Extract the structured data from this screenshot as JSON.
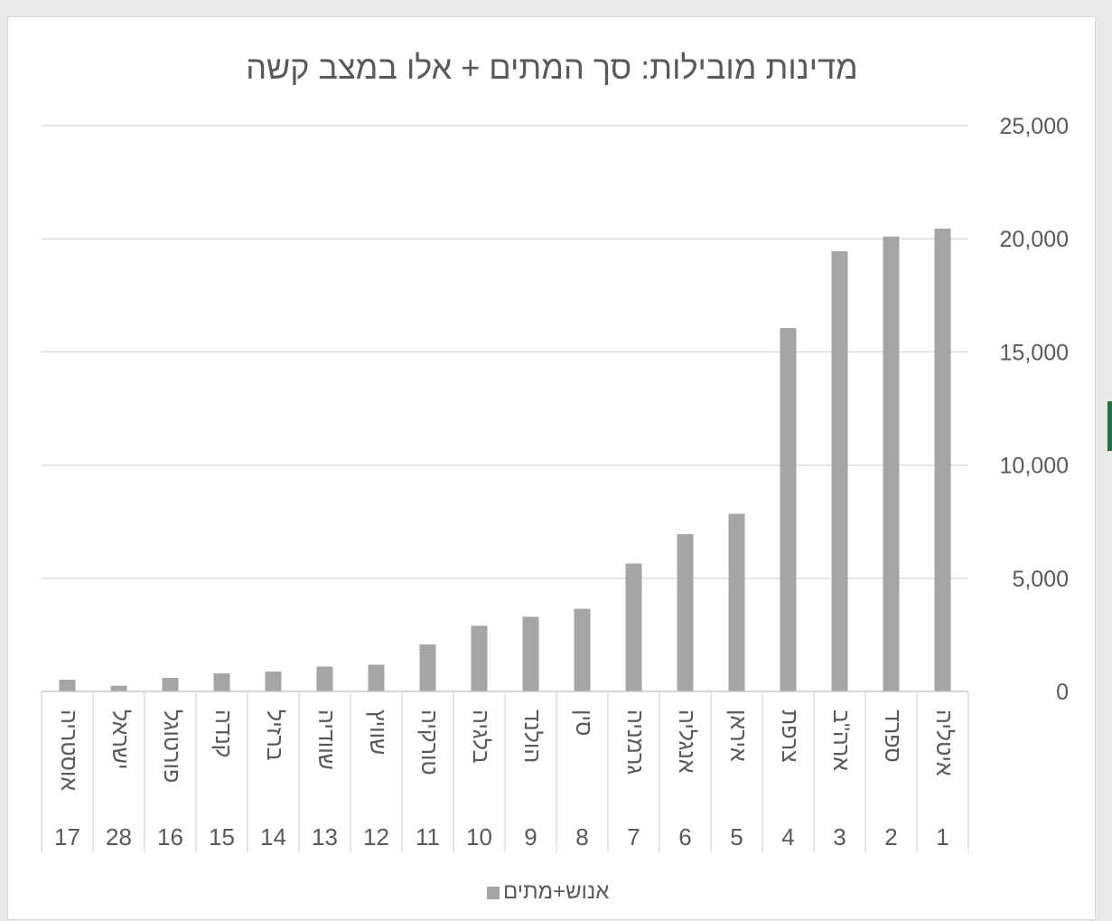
{
  "chart_data": {
    "type": "bar",
    "title": "מדינות מובילות: סך המתים + אלו במצב קשה",
    "xlabel": "",
    "ylabel": "",
    "ylim": [
      0,
      25000
    ],
    "yticks": [
      0,
      5000,
      10000,
      15000,
      20000,
      25000
    ],
    "ytick_labels": [
      "0",
      "5,000",
      "10,000",
      "15,000",
      "20,000",
      "25,000"
    ],
    "grid": true,
    "axis_side": "right",
    "category_order": "right-to-left",
    "legend_position": "bottom",
    "bar_color": "#a5a5a5",
    "categories": [
      {
        "rank": "1",
        "name": "איטליה"
      },
      {
        "rank": "2",
        "name": "ספרד"
      },
      {
        "rank": "3",
        "name": "ארה\"ב"
      },
      {
        "rank": "4",
        "name": "צרפת"
      },
      {
        "rank": "5",
        "name": "איראן"
      },
      {
        "rank": "6",
        "name": "אנגליה"
      },
      {
        "rank": "7",
        "name": "גרמניה"
      },
      {
        "rank": "8",
        "name": "סין"
      },
      {
        "rank": "9",
        "name": "הולנד"
      },
      {
        "rank": "10",
        "name": "בלגיה"
      },
      {
        "rank": "11",
        "name": "טורקיה"
      },
      {
        "rank": "12",
        "name": "שוויץ"
      },
      {
        "rank": "13",
        "name": "שוודיה"
      },
      {
        "rank": "14",
        "name": "ברזיל"
      },
      {
        "rank": "15",
        "name": "קנדה"
      },
      {
        "rank": "16",
        "name": "פורטוגל"
      },
      {
        "rank": "28",
        "name": "ישראל"
      },
      {
        "rank": "17",
        "name": "אוסטריה"
      }
    ],
    "series": [
      {
        "name": "אנוש+מתים",
        "values": [
          20450,
          20100,
          19450,
          16050,
          7850,
          6950,
          5650,
          3650,
          3300,
          2900,
          2080,
          1180,
          1100,
          880,
          800,
          600,
          250,
          520
        ]
      }
    ]
  }
}
